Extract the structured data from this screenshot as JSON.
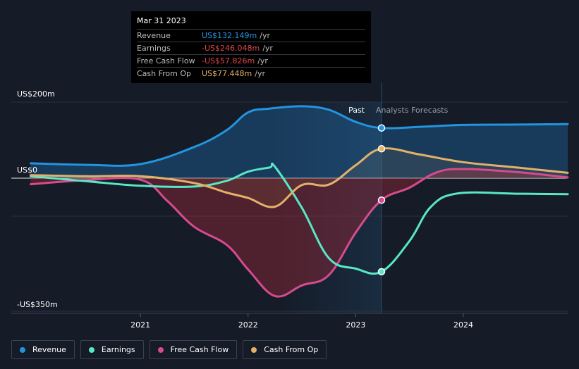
{
  "chart_data": {
    "type": "line",
    "y_axis_labels": {
      "top": "US$200m",
      "zero": "US$0",
      "bottom": "-US$350m"
    },
    "ylim": [
      -350,
      200
    ],
    "x_tick_labels": [
      "2021",
      "2022",
      "2023",
      "2024"
    ],
    "x_ticks": [
      2021.0,
      2022.0,
      2023.0,
      2024.0
    ],
    "xlim": [
      2019.8,
      2024.97
    ],
    "past_label": "Past",
    "forecast_label": "Analysts Forecasts",
    "divider_x": 2023.24,
    "series": [
      {
        "name": "Revenue",
        "color": "#2394df",
        "points": [
          [
            2019.98,
            39
          ],
          [
            2020.5,
            35
          ],
          [
            2021.0,
            37
          ],
          [
            2021.5,
            82
          ],
          [
            2021.8,
            126
          ],
          [
            2022.0,
            173
          ],
          [
            2022.2,
            183
          ],
          [
            2022.5,
            189
          ],
          [
            2022.75,
            180
          ],
          [
            2023.0,
            148
          ],
          [
            2023.24,
            132
          ],
          [
            2023.6,
            135
          ],
          [
            2024.0,
            140
          ],
          [
            2024.5,
            141
          ],
          [
            2024.97,
            142
          ]
        ]
      },
      {
        "name": "Earnings",
        "color": "#58e8c6",
        "points": [
          [
            2019.98,
            5
          ],
          [
            2020.5,
            -8
          ],
          [
            2021.0,
            -20
          ],
          [
            2021.5,
            -22
          ],
          [
            2021.8,
            -7
          ],
          [
            2022.0,
            17
          ],
          [
            2022.2,
            28
          ],
          [
            2022.25,
            30
          ],
          [
            2022.5,
            -78
          ],
          [
            2022.75,
            -210
          ],
          [
            2023.0,
            -238
          ],
          [
            2023.24,
            -246
          ],
          [
            2023.5,
            -165
          ],
          [
            2023.7,
            -75
          ],
          [
            2023.95,
            -40
          ],
          [
            2024.5,
            -41
          ],
          [
            2024.97,
            -42
          ]
        ]
      },
      {
        "name": "Free Cash Flow",
        "color": "#d64b8d",
        "points": [
          [
            2019.98,
            -16
          ],
          [
            2020.5,
            -5
          ],
          [
            2021.0,
            -4
          ],
          [
            2021.25,
            -60
          ],
          [
            2021.5,
            -128
          ],
          [
            2021.8,
            -175
          ],
          [
            2022.0,
            -240
          ],
          [
            2022.25,
            -310
          ],
          [
            2022.5,
            -282
          ],
          [
            2022.75,
            -255
          ],
          [
            2023.0,
            -143
          ],
          [
            2023.24,
            -57.8
          ],
          [
            2023.5,
            -25
          ],
          [
            2023.75,
            15
          ],
          [
            2024.0,
            24
          ],
          [
            2024.5,
            16
          ],
          [
            2024.97,
            2
          ]
        ]
      },
      {
        "name": "Cash From Op",
        "color": "#e3b168",
        "points": [
          [
            2019.98,
            8
          ],
          [
            2020.5,
            5
          ],
          [
            2021.0,
            5
          ],
          [
            2021.5,
            -13
          ],
          [
            2021.8,
            -38
          ],
          [
            2022.0,
            -52
          ],
          [
            2022.25,
            -75
          ],
          [
            2022.5,
            -18
          ],
          [
            2022.75,
            -17
          ],
          [
            2023.0,
            34
          ],
          [
            2023.24,
            77.4
          ],
          [
            2023.6,
            62
          ],
          [
            2024.0,
            42
          ],
          [
            2024.5,
            28
          ],
          [
            2024.97,
            14
          ]
        ]
      }
    ],
    "highlight": {
      "date": "Mar 31 2023",
      "rows": [
        {
          "label": "Revenue",
          "value": "US$132.149m",
          "unit": "/yr",
          "color": "#2394df"
        },
        {
          "label": "Earnings",
          "value": "-US$246.048m",
          "unit": "/yr",
          "color": "#e0464a"
        },
        {
          "label": "Free Cash Flow",
          "value": "-US$57.826m",
          "unit": "/yr",
          "color": "#e0464a"
        },
        {
          "label": "Cash From Op",
          "value": "US$77.448m",
          "unit": "/yr",
          "color": "#e3b168"
        }
      ]
    }
  },
  "legend": [
    {
      "label": "Revenue",
      "color": "#2394df"
    },
    {
      "label": "Earnings",
      "color": "#58e8c6"
    },
    {
      "label": "Free Cash Flow",
      "color": "#d64b8d"
    },
    {
      "label": "Cash From Op",
      "color": "#e3b168"
    }
  ]
}
